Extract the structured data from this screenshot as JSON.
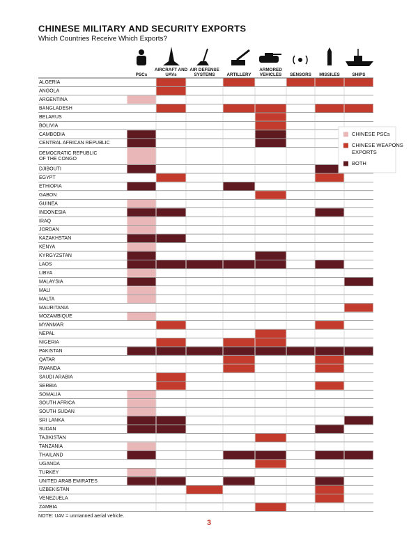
{
  "header": {
    "title": "CHINESE MILITARY AND SECURITY EXPORTS",
    "subtitle": "Which Countries Receive Which Exports?"
  },
  "table": {
    "columns": [
      "PSCs",
      "AIRCRAFT AND UAVs",
      "AIR DEFENSE SYSTEMS",
      "ARTILLERY",
      "ARMORED VEHICLES",
      "SENSORS",
      "MISSILES",
      "SHIPS"
    ],
    "rows": [
      {
        "country": "ALGERIA",
        "cells": [
          null,
          1,
          null,
          1,
          null,
          1,
          1,
          1
        ]
      },
      {
        "country": "ANGOLA",
        "cells": [
          null,
          1,
          null,
          null,
          null,
          null,
          null,
          null
        ]
      },
      {
        "country": "ARGENTINA",
        "cells": [
          0,
          null,
          null,
          null,
          null,
          null,
          null,
          null
        ]
      },
      {
        "country": "BANGLADESH",
        "cells": [
          null,
          1,
          null,
          1,
          1,
          null,
          1,
          1
        ]
      },
      {
        "country": "BELARUS",
        "cells": [
          null,
          null,
          null,
          null,
          1,
          null,
          null,
          null
        ]
      },
      {
        "country": "BOLIVIA",
        "cells": [
          null,
          null,
          null,
          null,
          1,
          null,
          null,
          null
        ]
      },
      {
        "country": "CAMBODIA",
        "cells": [
          2,
          null,
          null,
          null,
          2,
          null,
          null,
          null
        ]
      },
      {
        "country": "CENTRAL AFRICAN REPUBLIC",
        "cells": [
          2,
          null,
          null,
          null,
          2,
          null,
          null,
          null
        ]
      },
      {
        "country": "DEMOCRATIC REPUBLIC OF THE CONGO",
        "cells": [
          0,
          null,
          null,
          null,
          null,
          null,
          null,
          null
        ]
      },
      {
        "country": "DJIBOUTI",
        "cells": [
          2,
          null,
          null,
          null,
          null,
          null,
          2,
          null
        ]
      },
      {
        "country": "EGYPT",
        "cells": [
          null,
          1,
          null,
          null,
          null,
          null,
          1,
          null
        ]
      },
      {
        "country": "ETHIOPIA",
        "cells": [
          2,
          null,
          null,
          2,
          null,
          null,
          null,
          null
        ]
      },
      {
        "country": "GABON",
        "cells": [
          null,
          null,
          null,
          null,
          1,
          null,
          null,
          null
        ]
      },
      {
        "country": "GUINEA",
        "cells": [
          0,
          null,
          null,
          null,
          null,
          null,
          null,
          null
        ]
      },
      {
        "country": "INDONESIA",
        "cells": [
          2,
          2,
          null,
          null,
          null,
          null,
          2,
          null
        ]
      },
      {
        "country": "IRAQ",
        "cells": [
          0,
          null,
          null,
          null,
          null,
          null,
          null,
          null
        ]
      },
      {
        "country": "JORDAN",
        "cells": [
          0,
          null,
          null,
          null,
          null,
          null,
          null,
          null
        ]
      },
      {
        "country": "KAZAKHSTAN",
        "cells": [
          2,
          2,
          null,
          null,
          null,
          null,
          null,
          null
        ]
      },
      {
        "country": "KENYA",
        "cells": [
          0,
          null,
          null,
          null,
          null,
          null,
          null,
          null
        ]
      },
      {
        "country": "KYRGYZSTAN",
        "cells": [
          2,
          null,
          null,
          null,
          2,
          null,
          null,
          null
        ]
      },
      {
        "country": "LAOS",
        "cells": [
          2,
          2,
          2,
          2,
          2,
          null,
          2,
          null
        ]
      },
      {
        "country": "LIBYA",
        "cells": [
          0,
          null,
          null,
          null,
          null,
          null,
          null,
          null
        ]
      },
      {
        "country": "MALAYSIA",
        "cells": [
          2,
          null,
          null,
          null,
          null,
          null,
          null,
          2
        ]
      },
      {
        "country": "MALI",
        "cells": [
          0,
          null,
          null,
          null,
          null,
          null,
          null,
          null
        ]
      },
      {
        "country": "MALTA",
        "cells": [
          0,
          null,
          null,
          null,
          null,
          null,
          null,
          null
        ]
      },
      {
        "country": "MAURITANIA",
        "cells": [
          null,
          null,
          null,
          null,
          null,
          null,
          null,
          1
        ]
      },
      {
        "country": "MOZAMBIQUE",
        "cells": [
          0,
          null,
          null,
          null,
          null,
          null,
          null,
          null
        ]
      },
      {
        "country": "MYANMAR",
        "cells": [
          null,
          1,
          null,
          null,
          null,
          null,
          1,
          null
        ]
      },
      {
        "country": "NEPAL",
        "cells": [
          null,
          null,
          null,
          null,
          1,
          null,
          null,
          null
        ]
      },
      {
        "country": "NIGERIA",
        "cells": [
          null,
          1,
          null,
          1,
          1,
          null,
          null,
          null
        ]
      },
      {
        "country": "PAKISTAN",
        "cells": [
          2,
          2,
          2,
          2,
          2,
          2,
          2,
          2
        ]
      },
      {
        "country": "QATAR",
        "cells": [
          null,
          null,
          null,
          1,
          null,
          null,
          1,
          null
        ]
      },
      {
        "country": "RWANDA",
        "cells": [
          null,
          null,
          null,
          1,
          null,
          null,
          1,
          null
        ]
      },
      {
        "country": "SAUDI ARABIA",
        "cells": [
          null,
          1,
          null,
          null,
          null,
          null,
          null,
          null
        ]
      },
      {
        "country": "SERBIA",
        "cells": [
          null,
          1,
          null,
          null,
          null,
          null,
          1,
          null
        ]
      },
      {
        "country": "SOMALIA",
        "cells": [
          0,
          null,
          null,
          null,
          null,
          null,
          null,
          null
        ]
      },
      {
        "country": "SOUTH AFRICA",
        "cells": [
          0,
          null,
          null,
          null,
          null,
          null,
          null,
          null
        ]
      },
      {
        "country": "SOUTH SUDAN",
        "cells": [
          0,
          null,
          null,
          null,
          null,
          null,
          null,
          null
        ]
      },
      {
        "country": "SRI LANKA",
        "cells": [
          2,
          2,
          null,
          null,
          null,
          null,
          null,
          2
        ]
      },
      {
        "country": "SUDAN",
        "cells": [
          2,
          2,
          null,
          null,
          null,
          null,
          2,
          null
        ]
      },
      {
        "country": "TAJIKISTAN",
        "cells": [
          null,
          null,
          null,
          null,
          1,
          null,
          null,
          null
        ]
      },
      {
        "country": "TANZANIA",
        "cells": [
          0,
          null,
          null,
          null,
          null,
          null,
          null,
          null
        ]
      },
      {
        "country": "THAILAND",
        "cells": [
          2,
          null,
          null,
          2,
          2,
          null,
          2,
          2
        ]
      },
      {
        "country": "UGANDA",
        "cells": [
          null,
          null,
          null,
          null,
          1,
          null,
          null,
          null
        ]
      },
      {
        "country": "TURKEY",
        "cells": [
          0,
          null,
          null,
          null,
          null,
          null,
          null,
          null
        ]
      },
      {
        "country": "UNITED ARAB EMIRATES",
        "cells": [
          2,
          2,
          null,
          2,
          null,
          null,
          2,
          null
        ]
      },
      {
        "country": "UZBEKISTAN",
        "cells": [
          null,
          null,
          1,
          null,
          null,
          null,
          1,
          null
        ]
      },
      {
        "country": "VENEZUELA",
        "cells": [
          null,
          null,
          null,
          null,
          null,
          null,
          1,
          null
        ]
      },
      {
        "country": "ZAMBIA",
        "cells": [
          null,
          null,
          null,
          null,
          1,
          null,
          null,
          null
        ]
      }
    ]
  },
  "legend": [
    {
      "label": "CHINESE PSCs",
      "color": "#e9b7b8"
    },
    {
      "label": "CHINESE WEAPONS EXPORTS",
      "color": "#c23b2c"
    },
    {
      "label": "BOTH",
      "color": "#5e1a20"
    }
  ],
  "note": "NOTE: UAV = unmanned aerial vehicle.",
  "page_number": "3"
}
